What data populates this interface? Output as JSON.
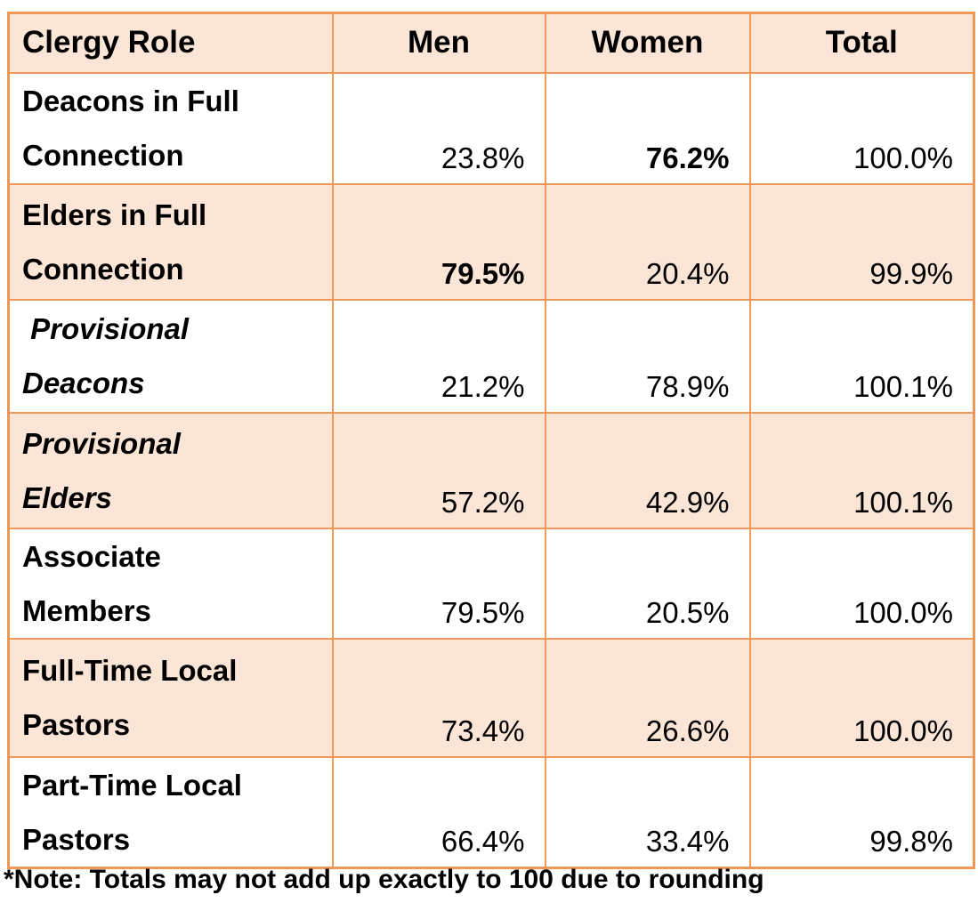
{
  "header": {
    "clergy_role": "Clergy Role",
    "men": "Men",
    "women": "Women",
    "total": "Total"
  },
  "table": {
    "rows": [
      {
        "role": "Deacons in Full\nConnection",
        "italic": false,
        "men": "23.8%",
        "men_bold": false,
        "women": "76.2%",
        "women_bold": true,
        "total": "100.0%"
      },
      {
        "role": "Elders in Full\nConnection",
        "italic": false,
        "men": "79.5%",
        "men_bold": true,
        "women": "20.4%",
        "women_bold": false,
        "total": "99.9%"
      },
      {
        "role": " Provisional\nDeacons",
        "italic": true,
        "men": "21.2%",
        "men_bold": false,
        "women": "78.9%",
        "women_bold": false,
        "total": "100.1%"
      },
      {
        "role": "Provisional\nElders",
        "italic": true,
        "men": "57.2%",
        "men_bold": false,
        "women": "42.9%",
        "women_bold": false,
        "total": "100.1%"
      },
      {
        "role": "Associate\nMembers",
        "italic": false,
        "men": "79.5%",
        "men_bold": false,
        "women": "20.5%",
        "women_bold": false,
        "total": "100.0%"
      },
      {
        "role": "Full-Time Local\nPastors",
        "italic": false,
        "men": "73.4%",
        "men_bold": false,
        "women": "26.6%",
        "women_bold": false,
        "total": "100.0%"
      },
      {
        "role": "Part-Time Local\nPastors",
        "italic": false,
        "men": "66.4%",
        "men_bold": false,
        "women": "33.4%",
        "women_bold": false,
        "total": "99.8%"
      }
    ]
  },
  "note": "*Note: Totals may not add up exactly to 100 due to rounding",
  "colors": {
    "row_shade": "#FBE5D6",
    "border": "#F0975A",
    "background": "#FFFFFF",
    "text": "#000000"
  },
  "chart_data": {
    "type": "table",
    "columns": [
      "Clergy Role",
      "Men",
      "Women",
      "Total"
    ],
    "rows": [
      [
        "Deacons in Full Connection",
        "23.8%",
        "76.2%",
        "100.0%"
      ],
      [
        "Elders in Full Connection",
        "79.5%",
        "20.4%",
        "99.9%"
      ],
      [
        "Provisional Deacons",
        "21.2%",
        "78.9%",
        "100.1%"
      ],
      [
        "Provisional Elders",
        "57.2%",
        "42.9%",
        "100.1%"
      ],
      [
        "Associate Members",
        "79.5%",
        "20.5%",
        "100.0%"
      ],
      [
        "Full-Time Local Pastors",
        "73.4%",
        "26.6%",
        "100.0%"
      ],
      [
        "Part-Time Local Pastors",
        "66.4%",
        "33.4%",
        "99.8%"
      ]
    ],
    "emphasized_cells": [
      {
        "row": "Deacons in Full Connection",
        "column": "Women",
        "value": "76.2%"
      },
      {
        "row": "Elders in Full Connection",
        "column": "Men",
        "value": "79.5%"
      }
    ],
    "note": "*Note: Totals may not add up exactly to 100 due to rounding",
    "layout": "striped rows, peach shading, orange grid borders"
  }
}
